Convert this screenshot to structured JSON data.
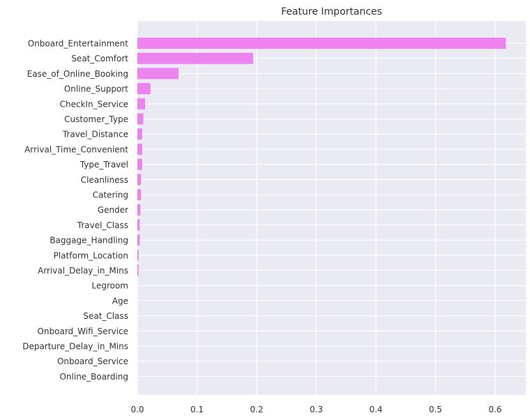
{
  "chart_data": {
    "type": "bar",
    "orientation": "horizontal",
    "title": "Feature Importances",
    "xlabel": "",
    "ylabel": "",
    "xlim": [
      0,
      0.65
    ],
    "x_ticks": [
      "0.0",
      "0.1",
      "0.2",
      "0.3",
      "0.4",
      "0.5",
      "0.6"
    ],
    "grid": true,
    "bar_color": "#ee82ee",
    "background_color": "#eaeaf2",
    "categories": [
      "Onboard_Entertainment",
      "Seat_Comfort",
      "Ease_of_Online_Booking",
      "Online_Support",
      "CheckIn_Service",
      "Customer_Type",
      "Travel_Distance",
      "Arrival_Time_Convenient",
      "Type_Travel",
      "Cleanliness",
      "Catering",
      "Gender",
      "Travel_Class",
      "Baggage_Handling",
      "Platform_Location",
      "Arrival_Delay_in_Mins",
      "Legroom",
      "Age",
      "Seat_Class",
      "Onboard_Wifi_Service",
      "Departure_Delay_in_Mins",
      "Onboard_Service",
      "Online_Boarding"
    ],
    "values": [
      0.618,
      0.194,
      0.069,
      0.022,
      0.013,
      0.01,
      0.008,
      0.008,
      0.008,
      0.006,
      0.006,
      0.005,
      0.004,
      0.004,
      0.002,
      0.002,
      0.0,
      0.0,
      0.0,
      0.0,
      0.0,
      0.0,
      0.0
    ]
  }
}
